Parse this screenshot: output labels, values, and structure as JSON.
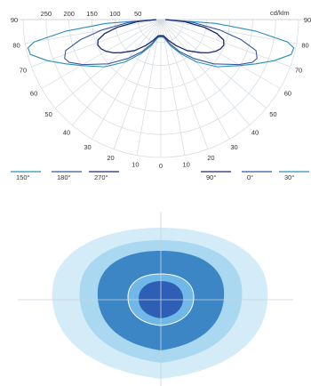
{
  "chart_data": [
    {
      "type": "polar",
      "unit_label": "cd/klm",
      "radial_ticks": [
        "250",
        "200",
        "150",
        "100",
        "50"
      ],
      "radial_max": 300,
      "angle_labels_left": [
        "90",
        "80",
        "70",
        "60",
        "50",
        "40",
        "30",
        "20",
        "10"
      ],
      "angle_labels_right": [
        "90",
        "80",
        "70",
        "60",
        "50",
        "40",
        "30",
        "20",
        "10"
      ],
      "angle_bottom": "0",
      "series": [
        {
          "name": "150°",
          "color": "#2a8fb5",
          "points": [
            [
              0,
              38
            ],
            [
              10,
              40
            ],
            [
              20,
              60
            ],
            [
              30,
              85
            ],
            [
              40,
              120
            ],
            [
              50,
              160
            ],
            [
              60,
              200
            ],
            [
              65,
              228
            ],
            [
              70,
              262
            ],
            [
              75,
              294
            ],
            [
              78,
              296
            ],
            [
              80,
              280
            ],
            [
              83,
              210
            ],
            [
              86,
              120
            ],
            [
              90,
              10
            ]
          ]
        },
        {
          "name": "180°",
          "color": "#3558a0",
          "points": [
            [
              0,
              36
            ],
            [
              10,
              38
            ],
            [
              20,
              55
            ],
            [
              30,
              80
            ],
            [
              40,
              110
            ],
            [
              50,
              150
            ],
            [
              60,
              196
            ],
            [
              65,
              220
            ],
            [
              68,
              226
            ],
            [
              72,
              218
            ],
            [
              76,
              180
            ],
            [
              80,
              130
            ],
            [
              85,
              70
            ],
            [
              90,
              10
            ]
          ]
        },
        {
          "name": "270°",
          "color": "#1c2b6b",
          "points": [
            [
              0,
              35
            ],
            [
              10,
              36
            ],
            [
              20,
              48
            ],
            [
              30,
              65
            ],
            [
              40,
              88
            ],
            [
              50,
              112
            ],
            [
              55,
              126
            ],
            [
              60,
              138
            ],
            [
              64,
              145
            ],
            [
              68,
              148
            ],
            [
              72,
              144
            ],
            [
              76,
              126
            ],
            [
              80,
              96
            ],
            [
              85,
              52
            ],
            [
              90,
              10
            ]
          ]
        },
        {
          "name": "90°",
          "color": "#1c2b6b",
          "points": [
            [
              0,
              35
            ],
            [
              10,
              36
            ],
            [
              20,
              48
            ],
            [
              30,
              65
            ],
            [
              40,
              88
            ],
            [
              50,
              112
            ],
            [
              55,
              126
            ],
            [
              60,
              138
            ],
            [
              64,
              145
            ],
            [
              68,
              148
            ],
            [
              72,
              144
            ],
            [
              76,
              126
            ],
            [
              80,
              96
            ],
            [
              85,
              52
            ],
            [
              90,
              10
            ]
          ]
        },
        {
          "name": "0°",
          "color": "#3558a0",
          "points": [
            [
              0,
              36
            ],
            [
              10,
              38
            ],
            [
              20,
              55
            ],
            [
              30,
              80
            ],
            [
              40,
              110
            ],
            [
              50,
              150
            ],
            [
              60,
              196
            ],
            [
              65,
              220
            ],
            [
              68,
              226
            ],
            [
              72,
              218
            ],
            [
              76,
              180
            ],
            [
              80,
              130
            ],
            [
              85,
              70
            ],
            [
              90,
              10
            ]
          ]
        },
        {
          "name": "30°",
          "color": "#2a8fb5",
          "points": [
            [
              0,
              38
            ],
            [
              10,
              40
            ],
            [
              20,
              60
            ],
            [
              30,
              85
            ],
            [
              40,
              120
            ],
            [
              50,
              160
            ],
            [
              60,
              200
            ],
            [
              65,
              228
            ],
            [
              70,
              262
            ],
            [
              75,
              294
            ],
            [
              78,
              296
            ],
            [
              80,
              280
            ],
            [
              83,
              210
            ],
            [
              86,
              120
            ],
            [
              90,
              10
            ]
          ]
        }
      ],
      "legend_left": [
        "150°",
        "180°",
        "270°"
      ],
      "legend_right": [
        "90°",
        "0°",
        "30°"
      ]
    },
    {
      "type": "isolux-contour",
      "levels": [
        {
          "color": "#d4ecf8"
        },
        {
          "color": "#a9d8f0"
        },
        {
          "color": "#3c86c6"
        },
        {
          "color": "#6fb8e8"
        },
        {
          "color": "#2f5fb5"
        }
      ]
    }
  ]
}
